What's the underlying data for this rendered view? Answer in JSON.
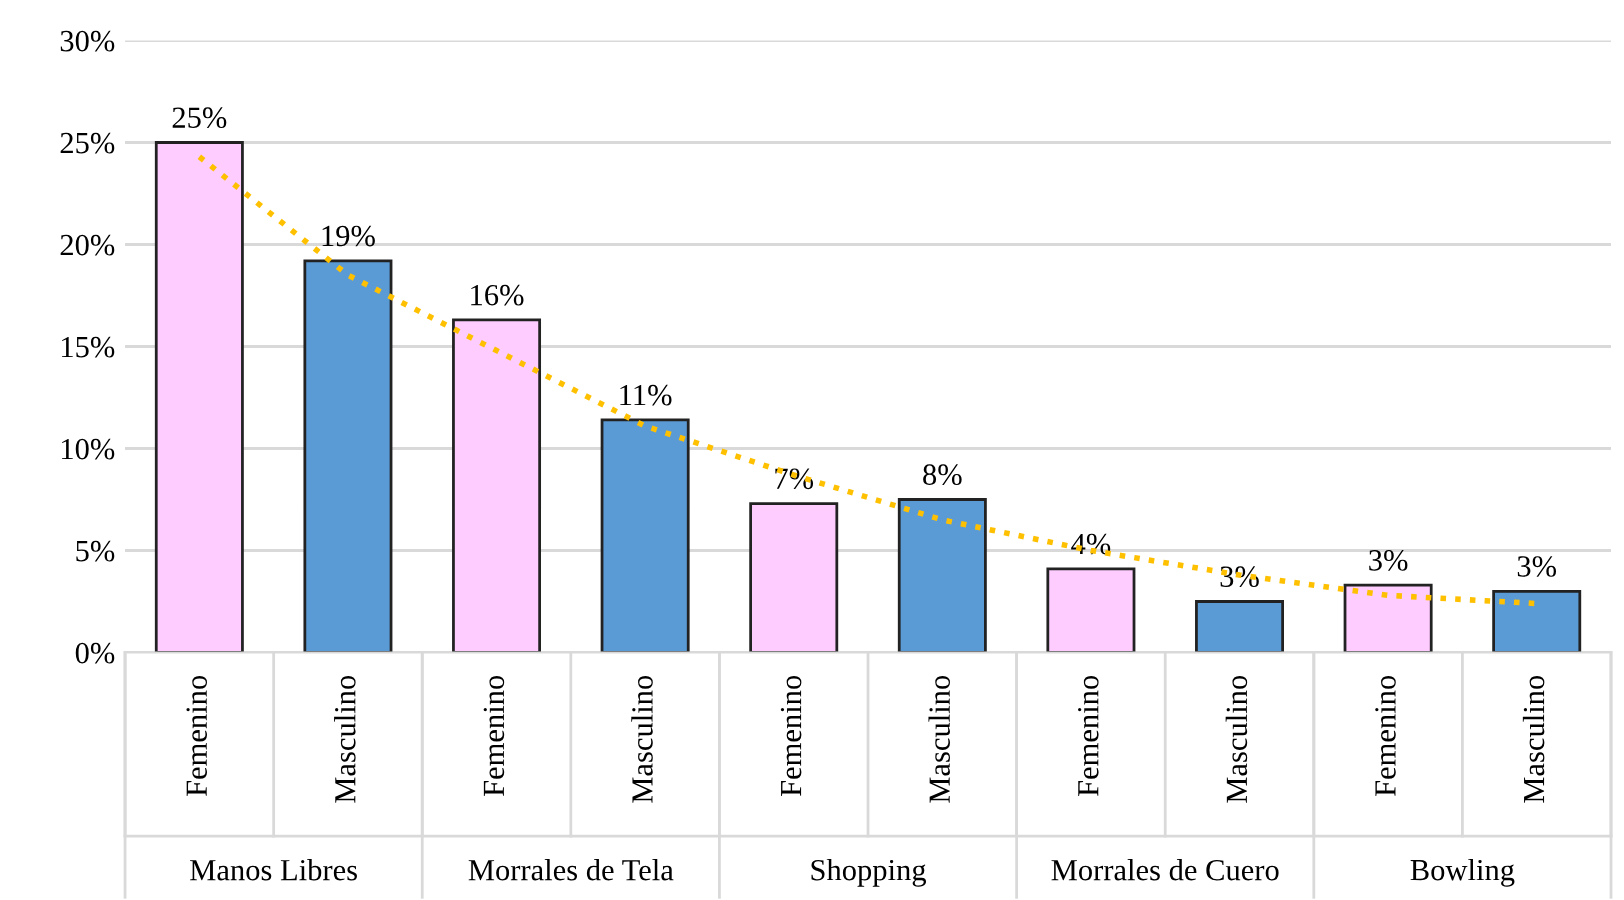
{
  "chart_data": {
    "type": "bar",
    "categories": [
      "Femenino",
      "Masculino",
      "Femenino",
      "Masculino",
      "Femenino",
      "Masculino",
      "Femenino",
      "Masculino",
      "Femenino",
      "Masculino"
    ],
    "series": [
      {
        "colors": [
          "#ffccff",
          "#5b9bd5",
          "#ffccff",
          "#5b9bd5",
          "#ffccff",
          "#5b9bd5",
          "#ffccff",
          "#5b9bd5",
          "#ffccff",
          "#5b9bd5"
        ],
        "values": [
          25.0,
          19.2,
          16.3,
          11.4,
          7.3,
          7.5,
          4.1,
          2.5,
          3.3,
          3.0
        ],
        "value_labels": [
          "25%",
          "19%",
          "16%",
          "11%",
          "7%",
          "8%",
          "4%",
          "3%",
          "3%",
          "3%"
        ]
      },
      {
        "type": "line",
        "color": "#ffc000",
        "line_style": "dotted",
        "values": [
          24.3,
          18.5,
          14.8,
          11.1,
          8.7,
          6.5,
          5.0,
          3.8,
          2.8,
          2.4
        ]
      }
    ],
    "annotations": [
      "Manos Libres",
      "Morrales de Tela",
      "Shopping",
      "Morrales de Cuero",
      "Bowling"
    ],
    "ylim": [
      0,
      30
    ],
    "yticks": [
      {
        "value": 0,
        "label": "0%"
      },
      {
        "value": 5,
        "label": "5%"
      },
      {
        "value": 10,
        "label": "10%"
      },
      {
        "value": 15,
        "label": "15%"
      },
      {
        "value": 20,
        "label": "20%"
      },
      {
        "value": 25,
        "label": "25%"
      },
      {
        "value": 30,
        "label": "30%"
      }
    ],
    "grid": "y"
  }
}
